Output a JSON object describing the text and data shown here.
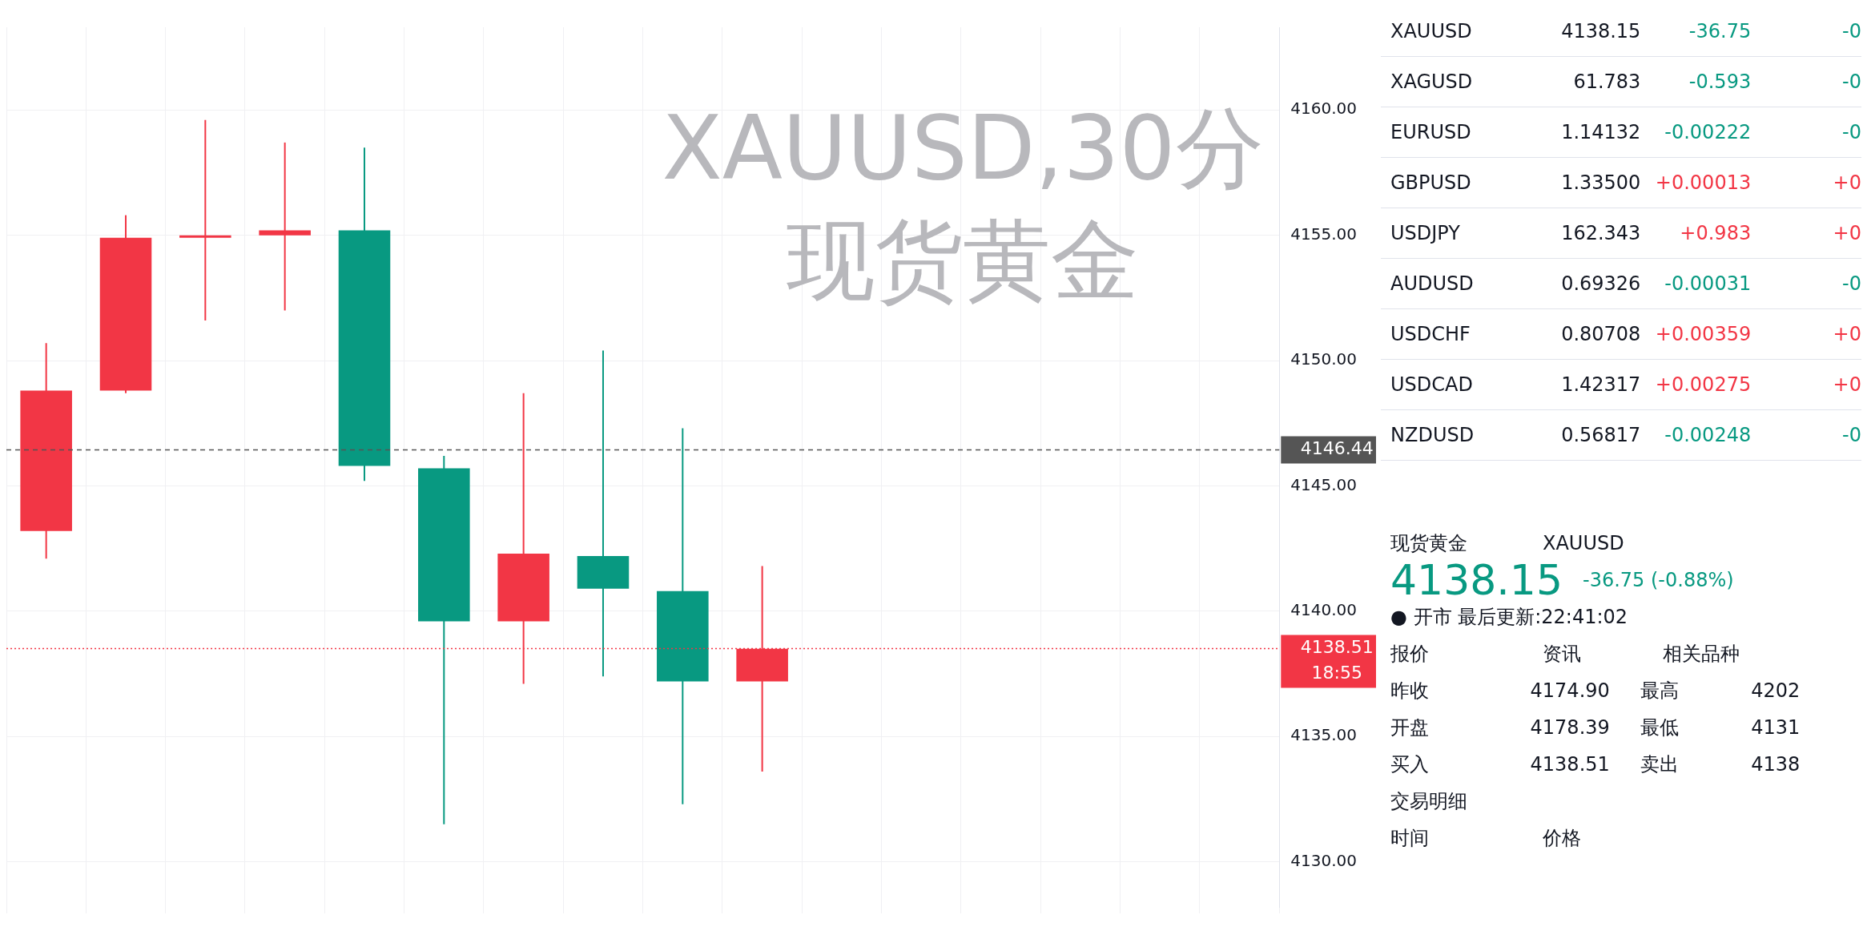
{
  "chart_data": [
    {
      "type": "candlestick",
      "title": "XAUUSD,30分",
      "subtitle": "现货黄金",
      "categories": [
        null,
        null,
        null,
        null,
        null,
        null,
        null,
        null,
        null,
        null,
        null,
        null,
        null,
        null,
        null,
        null
      ],
      "ohlc": [
        [
          4143.2,
          4150.7,
          4142.1,
          4148.8
        ],
        [
          4148.8,
          4155.8,
          4148.7,
          4154.9
        ],
        [
          4154.9,
          4159.6,
          4151.6,
          4155.0
        ],
        [
          4155.0,
          4158.7,
          4152.0,
          4155.2
        ],
        [
          4155.2,
          4158.5,
          4145.2,
          4145.8
        ],
        [
          4145.7,
          4146.2,
          4131.5,
          4139.6
        ],
        [
          4139.6,
          4148.7,
          4137.1,
          4142.3
        ],
        [
          4142.2,
          4150.4,
          4137.4,
          4140.9
        ],
        [
          4140.8,
          4147.3,
          4132.3,
          4137.2
        ],
        [
          4137.2,
          4141.8,
          4133.6,
          4138.5
        ],
        null,
        null,
        null,
        null,
        null,
        null
      ],
      "colors": [
        "#f23645",
        "#f23645",
        "#f23645",
        "#f23645",
        "#089981",
        "#089981",
        "#f23645",
        "#089981",
        "#089981",
        "#f23645",
        null,
        null,
        null,
        null,
        null,
        null
      ],
      "ylim": [
        4128.2,
        4163.3
      ],
      "yticks": [
        {
          "value": 4130,
          "label": "4130.00"
        },
        {
          "value": 4135,
          "label": "4135.00"
        },
        {
          "value": 4140,
          "label": "4140.00"
        },
        {
          "value": 4145,
          "label": "4145.00"
        },
        {
          "value": 4150,
          "label": "4150.00"
        },
        {
          "value": 4155,
          "label": "4155.00"
        },
        {
          "value": 4160,
          "label": "4160.00"
        }
      ],
      "grid": true,
      "legend": false,
      "ref_lines": [
        {
          "axis": "y",
          "value": 4146.44,
          "label": "4146.44",
          "color": "#555555",
          "line_style": "dashed"
        },
        {
          "axis": "y",
          "value": 4138.51,
          "label": "4138.51",
          "color": "#f23645",
          "line_style": "dotted"
        }
      ],
      "annotations": [
        "18:55"
      ]
    },
    {
      "type": "other",
      "annotations": [
        "XAUUSD\t4138.15\t-36.75\t-0",
        "XAGUSD\t61.783\t-0.593\t-0",
        "EURUSD\t1.14132\t-0.00222\t-0",
        "GBPUSD\t1.33500\t+0.00013\t+0",
        "USDJPY\t162.343\t+0.983\t+0",
        "AUDUSD\t0.69326\t-0.00031\t-0",
        "USDCHF\t0.80708\t+0.00359\t+0",
        "USDCAD\t1.42317\t+0.00275\t+0",
        "NZDUSD\t0.56817\t-0.00248\t-0",
        "现货黄金\tXAUUSD",
        "4138.15\t-36.75 (-0.88%)",
        "● 开市  最后更新:22:41:02",
        "报价\t资讯\t相关品种",
        "昨收\t4174.90\t最高\t4202",
        "开盘\t4178.39\t最低\t4131",
        "买入\t4138.51\t卖出\t4138",
        "交易明细",
        "时间\t价格"
      ]
    }
  ]
}
